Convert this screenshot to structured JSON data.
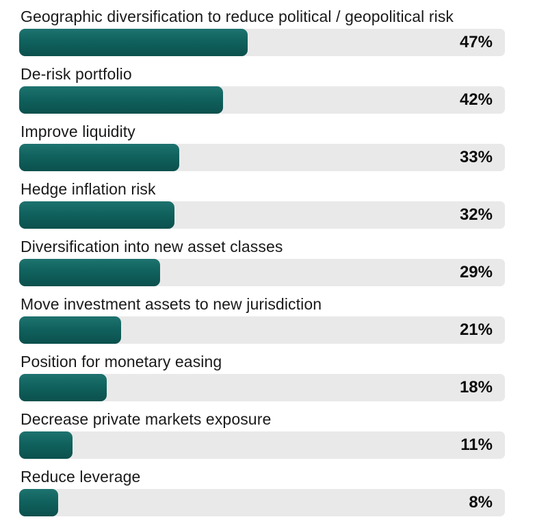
{
  "chart_data": {
    "type": "bar",
    "orientation": "horizontal",
    "title": "",
    "xlabel": "",
    "ylabel": "",
    "xlim": [
      0,
      100
    ],
    "grid": false,
    "legend": false,
    "categories": [
      "Geographic diversification to reduce political / geopolitical risk",
      "De-risk portfolio",
      "Improve liquidity",
      "Hedge inflation risk",
      "Diversification into new asset classes",
      "Move investment assets to new jurisdiction",
      "Position for monetary easing",
      "Decrease private markets exposure",
      "Reduce leverage"
    ],
    "values": [
      47,
      42,
      33,
      32,
      29,
      21,
      18,
      11,
      8
    ],
    "value_labels": [
      "47%",
      "42%",
      "33%",
      "32%",
      "29%",
      "21%",
      "18%",
      "11%",
      "8%"
    ],
    "colors": {
      "bar_fill": "#10625e",
      "bar_fill_gradient_top": "#1e7370",
      "bar_fill_gradient_bottom": "#0b504d",
      "track": "#e9e9e9",
      "category_text": "#1a1a1a",
      "value_text": "#0d0d0d",
      "background": "#ffffff"
    }
  }
}
